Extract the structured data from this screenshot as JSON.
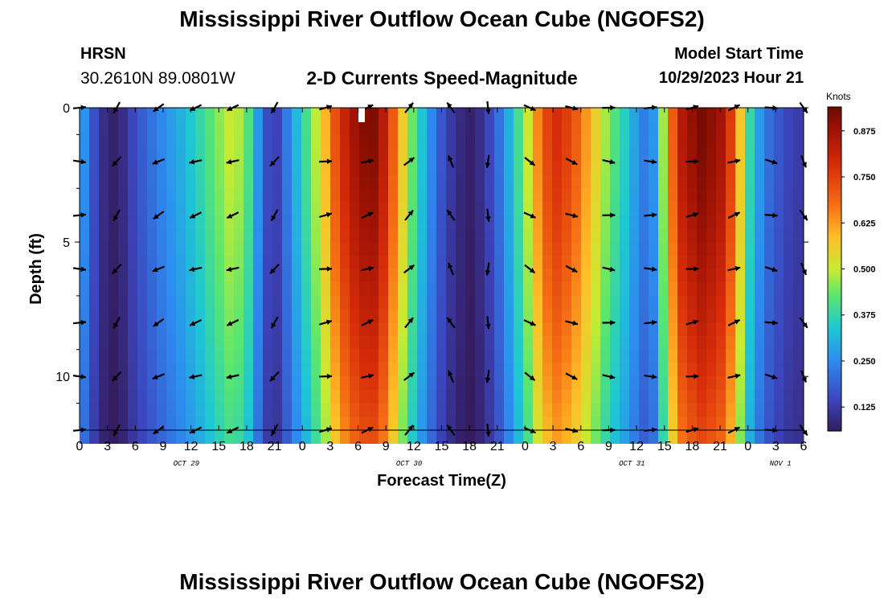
{
  "header": {
    "title": "Mississippi River Outflow Ocean Cube (NGOFS2)",
    "station": "HRSN",
    "coords": "30.2610N  89.0801W",
    "subtitle": "2-D Currents Speed-Magnitude",
    "model_start_label": "Model Start Time",
    "model_start_value": "10/29/2023 Hour 21",
    "footer_title": "Mississippi River Outflow Ocean Cube (NGOFS2)"
  },
  "chart_data": {
    "type": "heatmap",
    "title": "2-D Currents Speed-Magnitude",
    "xlabel": "Forecast Time(Z)",
    "ylabel": "Depth (ft)",
    "colorbar_label": "Knots",
    "x_range_hours": [
      0,
      78
    ],
    "x_note": "hours from 10/29/2023 00Z",
    "y_range_ft": [
      0,
      12
    ],
    "y_inverted": true,
    "x_ticks": [
      {
        "h": 0,
        "label": "0"
      },
      {
        "h": 3,
        "label": "3"
      },
      {
        "h": 6,
        "label": "6"
      },
      {
        "h": 9,
        "label": "9"
      },
      {
        "h": 12,
        "label": "12"
      },
      {
        "h": 15,
        "label": "15"
      },
      {
        "h": 18,
        "label": "18"
      },
      {
        "h": 21,
        "label": "21"
      },
      {
        "h": 24,
        "label": "0"
      },
      {
        "h": 27,
        "label": "3"
      },
      {
        "h": 30,
        "label": "6"
      },
      {
        "h": 33,
        "label": "9"
      },
      {
        "h": 36,
        "label": "12"
      },
      {
        "h": 39,
        "label": "15"
      },
      {
        "h": 42,
        "label": "18"
      },
      {
        "h": 45,
        "label": "21"
      },
      {
        "h": 48,
        "label": "0"
      },
      {
        "h": 51,
        "label": "3"
      },
      {
        "h": 54,
        "label": "6"
      },
      {
        "h": 57,
        "label": "9"
      },
      {
        "h": 60,
        "label": "12"
      },
      {
        "h": 63,
        "label": "15"
      },
      {
        "h": 66,
        "label": "18"
      },
      {
        "h": 69,
        "label": "21"
      },
      {
        "h": 72,
        "label": "0"
      },
      {
        "h": 75,
        "label": "3"
      },
      {
        "h": 78,
        "label": "6"
      }
    ],
    "date_labels": [
      {
        "h": 11.5,
        "label": "OCT 29"
      },
      {
        "h": 35.5,
        "label": "OCT 30"
      },
      {
        "h": 59.5,
        "label": "OCT 31"
      },
      {
        "h": 75.5,
        "label": "NOV 1"
      }
    ],
    "y_ticks": [
      {
        "d": 0,
        "label": "0"
      },
      {
        "d": 5,
        "label": "5"
      },
      {
        "d": 10,
        "label": "10"
      }
    ],
    "colorbar": {
      "min": 0.06,
      "max": 0.94,
      "ticks": [
        "0.125",
        "0.250",
        "0.375",
        "0.500",
        "0.625",
        "0.750",
        "0.875"
      ],
      "tick_values": [
        0.125,
        0.25,
        0.375,
        0.5,
        0.625,
        0.75,
        0.875
      ]
    },
    "speed_profile_knots": [
      {
        "h": 0,
        "v": 0.33
      },
      {
        "h": 1,
        "v": 0.2
      },
      {
        "h": 2.5,
        "v": 0.1
      },
      {
        "h": 3.5,
        "v": 0.07
      },
      {
        "h": 4.5,
        "v": 0.09
      },
      {
        "h": 6,
        "v": 0.16
      },
      {
        "h": 8.5,
        "v": 0.24
      },
      {
        "h": 11,
        "v": 0.31
      },
      {
        "h": 13,
        "v": 0.38
      },
      {
        "h": 15,
        "v": 0.46
      },
      {
        "h": 16.5,
        "v": 0.52
      },
      {
        "h": 18,
        "v": 0.44
      },
      {
        "h": 19,
        "v": 0.3
      },
      {
        "h": 20,
        "v": 0.17
      },
      {
        "h": 21,
        "v": 0.12
      },
      {
        "h": 22,
        "v": 0.2
      },
      {
        "h": 23.5,
        "v": 0.33
      },
      {
        "h": 25,
        "v": 0.45
      },
      {
        "h": 26.5,
        "v": 0.6
      },
      {
        "h": 28,
        "v": 0.78
      },
      {
        "h": 30,
        "v": 0.9
      },
      {
        "h": 31.5,
        "v": 0.93
      },
      {
        "h": 33,
        "v": 0.82
      },
      {
        "h": 34.5,
        "v": 0.6
      },
      {
        "h": 36,
        "v": 0.42
      },
      {
        "h": 37.5,
        "v": 0.28
      },
      {
        "h": 39,
        "v": 0.17
      },
      {
        "h": 40.5,
        "v": 0.1
      },
      {
        "h": 42,
        "v": 0.07
      },
      {
        "h": 43.5,
        "v": 0.11
      },
      {
        "h": 45,
        "v": 0.2
      },
      {
        "h": 46.5,
        "v": 0.33
      },
      {
        "h": 48,
        "v": 0.47
      },
      {
        "h": 49.5,
        "v": 0.67
      },
      {
        "h": 51,
        "v": 0.8
      },
      {
        "h": 53,
        "v": 0.74
      },
      {
        "h": 55,
        "v": 0.6
      },
      {
        "h": 57,
        "v": 0.45
      },
      {
        "h": 59,
        "v": 0.34
      },
      {
        "h": 60.5,
        "v": 0.24
      },
      {
        "h": 61.5,
        "v": 0.22
      },
      {
        "h": 62.5,
        "v": 0.38
      },
      {
        "h": 63.5,
        "v": 0.65
      },
      {
        "h": 65,
        "v": 0.86
      },
      {
        "h": 67,
        "v": 0.93
      },
      {
        "h": 69,
        "v": 0.88
      },
      {
        "h": 70.5,
        "v": 0.72
      },
      {
        "h": 71.5,
        "v": 0.5
      },
      {
        "h": 72.5,
        "v": 0.33
      },
      {
        "h": 74,
        "v": 0.22
      },
      {
        "h": 76,
        "v": 0.15
      },
      {
        "h": 78,
        "v": 0.12
      }
    ],
    "arrow_depths_ft": [
      0,
      2,
      4,
      6,
      8,
      10,
      12
    ],
    "arrow_direction_deg_by_column": [
      {
        "h": 0,
        "dir": 90
      },
      {
        "h": 4,
        "dir": 215
      },
      {
        "h": 8.5,
        "dir": 240
      },
      {
        "h": 12.5,
        "dir": 250
      },
      {
        "h": 16.5,
        "dir": 250
      },
      {
        "h": 21,
        "dir": 215
      },
      {
        "h": 26.5,
        "dir": 80
      },
      {
        "h": 31,
        "dir": 70
      },
      {
        "h": 35.5,
        "dir": 45
      },
      {
        "h": 40,
        "dir": 330
      },
      {
        "h": 44,
        "dir": 180
      },
      {
        "h": 48.5,
        "dir": 120
      },
      {
        "h": 53,
        "dir": 110
      },
      {
        "h": 57,
        "dir": 95
      },
      {
        "h": 61.5,
        "dir": 90
      },
      {
        "h": 66,
        "dir": 80
      },
      {
        "h": 70.5,
        "dir": 70
      },
      {
        "h": 74.5,
        "dir": 100
      },
      {
        "h": 78,
        "dir": 150
      }
    ]
  }
}
